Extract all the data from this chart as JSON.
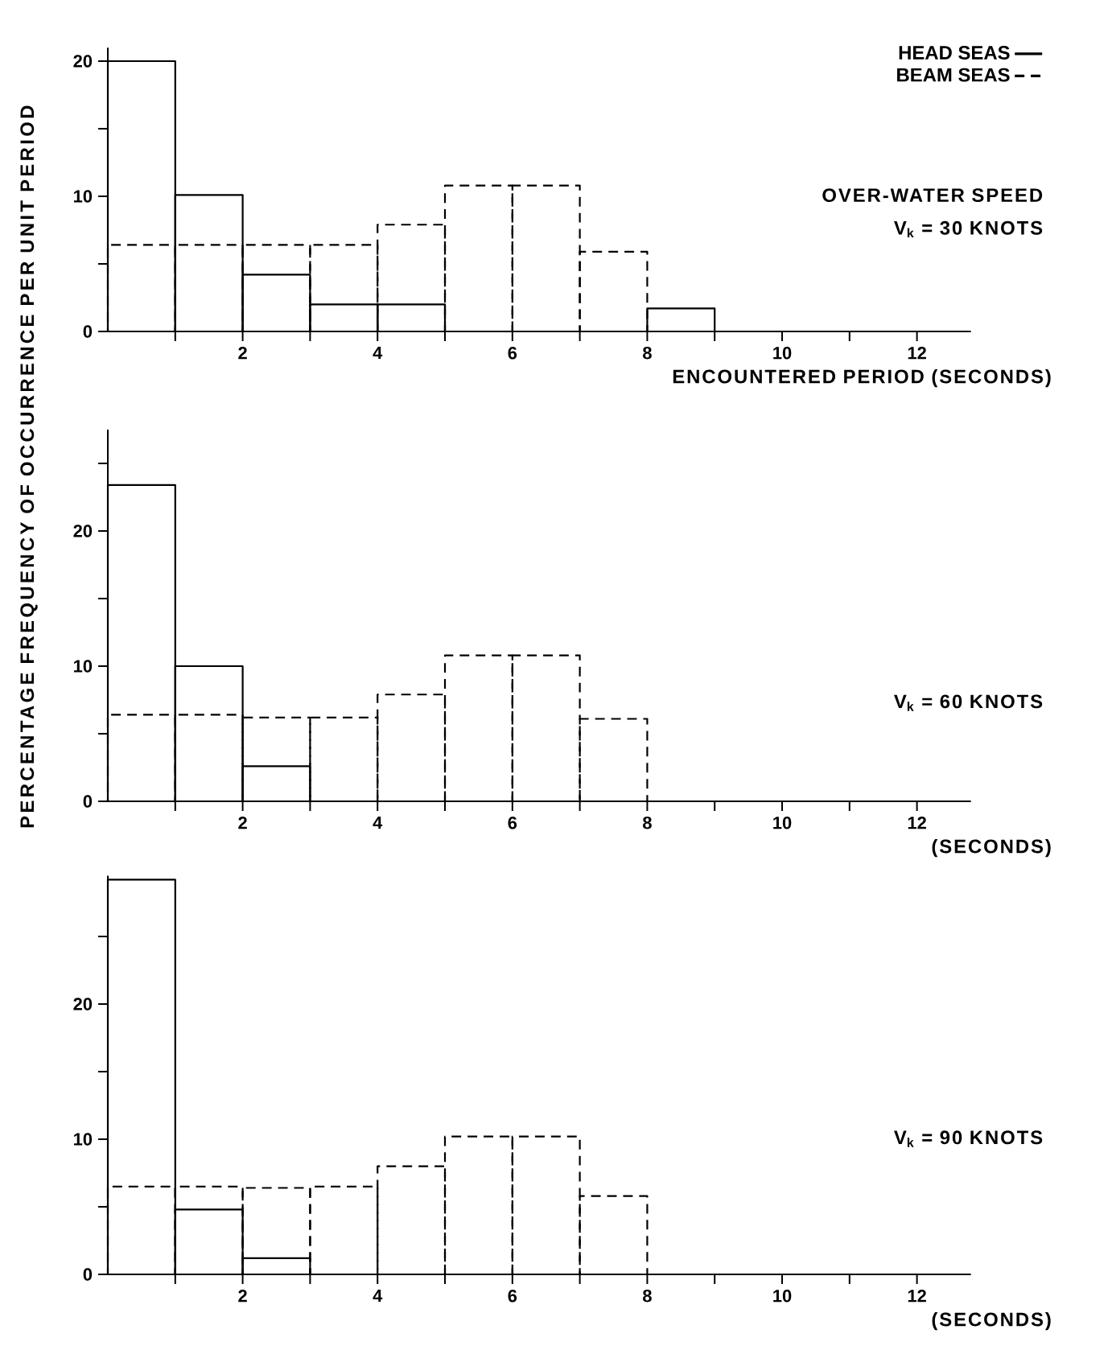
{
  "chart_data": [
    {
      "type": "histogram",
      "xlabel": "ENCOUNTERED PERIOD (SECONDS)",
      "bins": [
        0,
        1,
        2,
        3,
        4,
        5,
        6,
        7,
        8,
        9
      ],
      "series": [
        {
          "name": "HEAD SEAS",
          "color": "#000000",
          "line_style": "solid",
          "values": [
            20,
            10.1,
            4.2,
            2,
            2,
            0,
            0,
            0,
            1.7
          ]
        },
        {
          "name": "BEAM SEAS",
          "color": "#000000",
          "line_style": "dashed",
          "values": [
            6.4,
            6.4,
            6.4,
            6.4,
            7.9,
            10.8,
            10.8,
            5.9,
            null
          ]
        }
      ],
      "annotations": [
        "OVER-WATER SPEED",
        "V$_{k}$ = 30 KNOTS"
      ],
      "legend": "top right",
      "xlim": [
        0,
        12.8
      ],
      "ylim": [
        0,
        21
      ],
      "xticks": [
        {
          "value": 1,
          "label": null
        },
        2,
        {
          "value": 3,
          "label": null
        },
        4,
        {
          "value": 5,
          "label": null
        },
        6,
        {
          "value": 7,
          "label": null
        },
        8,
        {
          "value": 9,
          "label": null
        },
        10,
        {
          "value": 11,
          "label": null
        },
        12
      ],
      "yticks": [
        0,
        {
          "value": 5,
          "label": null
        },
        10,
        {
          "value": 15,
          "label": null
        },
        20
      ]
    },
    {
      "type": "histogram",
      "xlabel": "(SECONDS)",
      "ylabel": "PERCENTAGE FREQUENCY OF OCCURRENCE PER UNIT PERIOD",
      "bins": [
        0,
        1,
        2,
        3,
        4,
        5,
        6,
        7,
        8
      ],
      "series": [
        {
          "color": "#000000",
          "line_style": "solid",
          "values": [
            23.4,
            10,
            2.6,
            0,
            0,
            0,
            0,
            0
          ]
        },
        {
          "color": "#000000",
          "line_style": "dashed",
          "values": [
            6.4,
            6.4,
            6.2,
            6.2,
            7.9,
            10.8,
            10.8,
            6.1
          ]
        }
      ],
      "annotations": [
        "V$_{k}$ = 60 KNOTS"
      ],
      "xlim": [
        0,
        12.8
      ],
      "ylim": [
        0,
        27.5
      ],
      "xticks": [
        {
          "value": 1,
          "label": null
        },
        2,
        {
          "value": 3,
          "label": null
        },
        4,
        {
          "value": 5,
          "label": null
        },
        6,
        {
          "value": 7,
          "label": null
        },
        8,
        {
          "value": 9,
          "label": null
        },
        10,
        {
          "value": 11,
          "label": null
        },
        12
      ],
      "yticks": [
        0,
        {
          "value": 5,
          "label": null
        },
        10,
        {
          "value": 15,
          "label": null
        },
        20,
        {
          "value": 25,
          "label": null
        }
      ]
    },
    {
      "type": "histogram",
      "xlabel": "(SECONDS)",
      "bins": [
        0,
        1,
        2,
        3,
        4,
        5,
        6,
        7,
        8
      ],
      "series": [
        {
          "color": "#000000",
          "line_style": "solid",
          "values": [
            29.2,
            4.8,
            1.2,
            0,
            0,
            0,
            0,
            0
          ]
        },
        {
          "color": "#000000",
          "line_style": "dashed",
          "values": [
            6.5,
            6.5,
            6.4,
            6.5,
            8,
            10.2,
            10.2,
            5.8
          ]
        }
      ],
      "annotations": [
        "V$_{k}$ = 90 KNOTS"
      ],
      "xlim": [
        0,
        12.8
      ],
      "ylim": [
        0,
        29.5
      ],
      "xticks": [
        {
          "value": 1,
          "label": null
        },
        2,
        {
          "value": 3,
          "label": null
        },
        4,
        {
          "value": 5,
          "label": null
        },
        6,
        {
          "value": 7,
          "label": null
        },
        8,
        {
          "value": 9,
          "label": null
        },
        10,
        {
          "value": 11,
          "label": null
        },
        12
      ],
      "yticks": [
        0,
        {
          "value": 5,
          "label": null
        },
        10,
        {
          "value": 15,
          "label": null
        },
        20,
        {
          "value": 25,
          "label": null
        }
      ]
    }
  ]
}
